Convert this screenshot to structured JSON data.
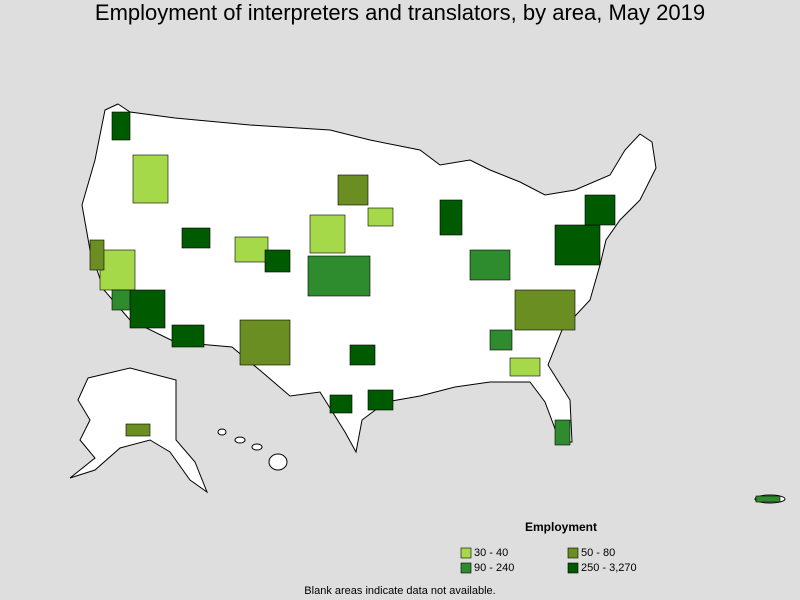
{
  "title": "Employment of interpreters and translators, by area, May 2019",
  "legend": {
    "title": "Employment",
    "items": [
      {
        "label": "30 - 40",
        "color": "#a6d94a"
      },
      {
        "label": "50 - 80",
        "color": "#6b8e23"
      },
      {
        "label": "90 - 240",
        "color": "#2e8b2e"
      },
      {
        "label": "250 - 3,270",
        "color": "#005a00"
      }
    ]
  },
  "note": "Blank areas indicate data not available."
}
